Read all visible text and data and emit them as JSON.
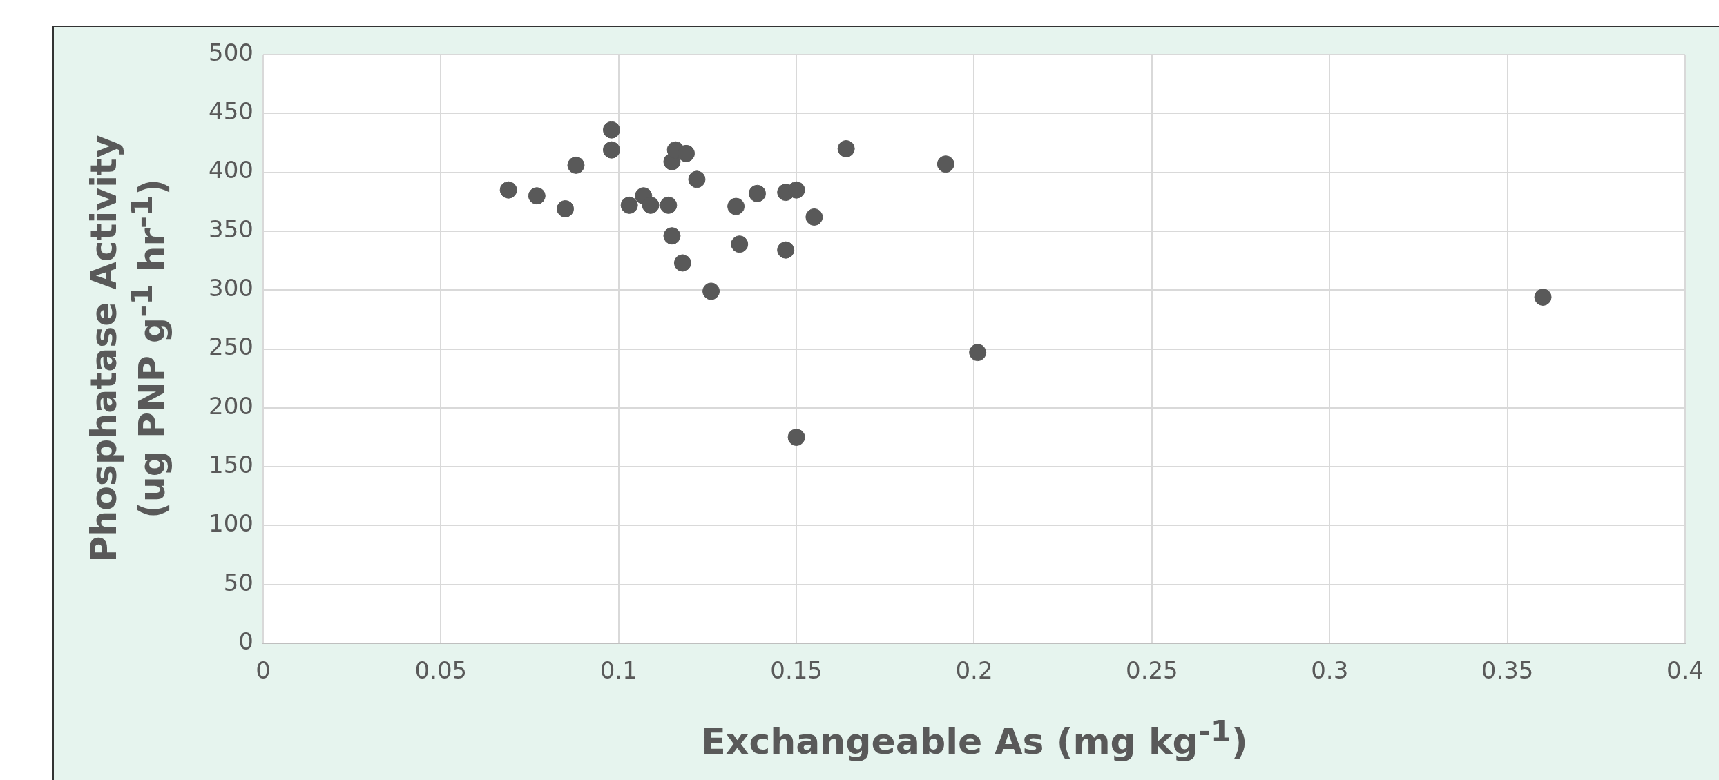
{
  "chart_data": {
    "type": "scatter",
    "xlabel": "Exchangeable As (mg kg$^{-1}$)",
    "ylabel": "Phosphatase Activity\n(ug PNP g$^{-1}$ hr$^{-1}$)",
    "series": [
      {
        "color": "#595959",
        "x": [
          0.069,
          0.077,
          0.085,
          0.088,
          0.098,
          0.098,
          0.103,
          0.107,
          0.109,
          0.114,
          0.115,
          0.115,
          0.116,
          0.119,
          0.118,
          0.122,
          0.126,
          0.133,
          0.134,
          0.139,
          0.147,
          0.15,
          0.147,
          0.15,
          0.155,
          0.164,
          0.192,
          0.201,
          0.36
        ],
        "values": [
          385,
          380,
          369,
          406,
          436,
          419,
          372,
          380,
          372,
          372,
          346,
          409,
          419,
          416,
          323,
          394,
          299,
          371,
          339,
          382,
          383,
          385,
          334,
          175,
          362,
          420,
          407,
          247,
          294
        ]
      }
    ],
    "xlim": [
      0,
      0.4
    ],
    "xticks": [
      0,
      0.05,
      0.1,
      0.15,
      0.2,
      0.25,
      0.3,
      0.35,
      0.4
    ],
    "ylim": [
      0,
      500
    ],
    "yticks": [
      0,
      50,
      100,
      150,
      200,
      250,
      300,
      350,
      400,
      450,
      500
    ],
    "grid": true,
    "legend": false,
    "marker": "circle"
  }
}
